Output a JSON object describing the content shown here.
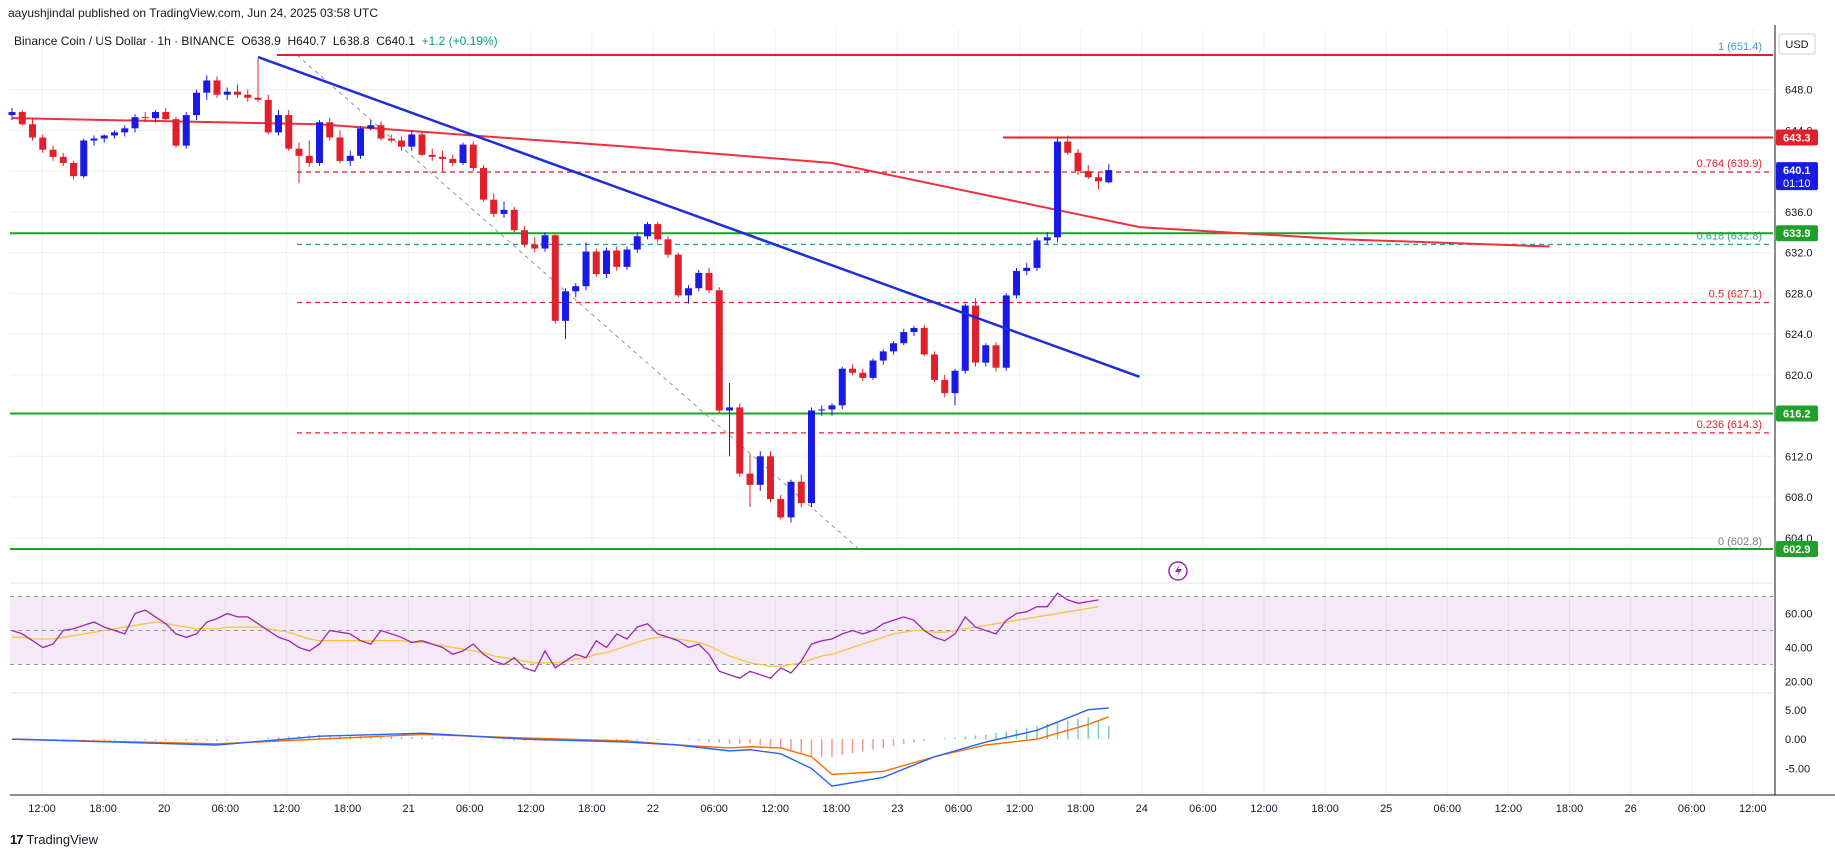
{
  "header": {
    "published": "aayushjindal published on TradingView.com, Jun 24, 2025 03:58 UTC"
  },
  "legend": {
    "symbol": "Binance Coin / US Dollar · 1h · BINANCE",
    "open": "O638.9",
    "high": "H640.7",
    "low": "L638.8",
    "close": "C640.1",
    "change": "+1.2 (+0.19%)"
  },
  "brand": {
    "name": "TradingView",
    "logo": "17"
  },
  "colors": {
    "up": "#1a1ae6",
    "down": "#e0202a",
    "ma": "#f0303c",
    "trend": "#1c2fd6",
    "support": "#1fa02a",
    "resistance": "#e0202a",
    "rsi": "#9c27b0",
    "rsi_ma": "#f5c542",
    "macd": "#2962ff",
    "signal": "#ff6d00",
    "hist": "#26a69a"
  },
  "chart_data": [
    {
      "type": "candlestick",
      "title": "Binance Coin / US Dollar · 1h · BINANCE",
      "currency": "USD",
      "ylim": [
        602,
        652
      ],
      "y_ticks": [
        "648.0",
        "644.0",
        "640.0",
        "636.0",
        "632.0",
        "628.0",
        "624.0",
        "620.0",
        "616.0",
        "612.0",
        "608.0",
        "604.0"
      ],
      "x_ticks": [
        "12:00",
        "18:00",
        "20",
        "06:00",
        "12:00",
        "18:00",
        "21",
        "06:00",
        "12:00",
        "18:00",
        "22",
        "06:00",
        "12:00",
        "18:00",
        "23",
        "06:00",
        "12:00",
        "18:00",
        "24",
        "06:00",
        "12:00",
        "18:00",
        "25",
        "06:00",
        "12:00",
        "18:00",
        "26",
        "06:00",
        "12:00"
      ],
      "candles": [
        [
          645.5,
          646.2,
          645.0,
          645.8
        ],
        [
          645.8,
          646.0,
          644.5,
          644.6
        ],
        [
          644.6,
          645.2,
          643.0,
          643.3
        ],
        [
          643.3,
          643.6,
          641.8,
          642.1
        ],
        [
          642.1,
          642.5,
          641.0,
          641.4
        ],
        [
          641.4,
          641.8,
          640.5,
          640.8
        ],
        [
          640.8,
          641.0,
          639.2,
          639.5
        ],
        [
          639.5,
          643.2,
          639.3,
          643.0
        ],
        [
          643.0,
          643.5,
          642.5,
          643.2
        ],
        [
          643.2,
          643.6,
          642.8,
          643.5
        ],
        [
          643.5,
          644.0,
          643.2,
          643.8
        ],
        [
          643.8,
          644.5,
          643.4,
          644.2
        ],
        [
          644.2,
          645.6,
          643.8,
          645.3
        ],
        [
          645.3,
          645.8,
          644.8,
          645.2
        ],
        [
          645.2,
          646.0,
          644.8,
          645.8
        ],
        [
          645.8,
          646.2,
          645.0,
          645.1
        ],
        [
          645.1,
          645.3,
          642.3,
          642.5
        ],
        [
          642.5,
          645.8,
          642.2,
          645.5
        ],
        [
          645.5,
          648.0,
          645.0,
          647.7
        ],
        [
          647.7,
          649.4,
          647.0,
          648.9
        ],
        [
          648.9,
          649.3,
          647.2,
          647.5
        ],
        [
          647.5,
          648.2,
          647.0,
          647.8
        ],
        [
          647.8,
          648.5,
          647.2,
          647.5
        ],
        [
          647.5,
          648.0,
          646.8,
          647.2
        ],
        [
          647.2,
          651.0,
          646.8,
          647.0
        ],
        [
          647.0,
          647.5,
          643.6,
          643.8
        ],
        [
          643.8,
          646.0,
          643.5,
          645.5
        ],
        [
          645.5,
          646.0,
          642.0,
          642.2
        ],
        [
          642.2,
          642.8,
          638.8,
          641.5
        ],
        [
          641.5,
          643.0,
          640.4,
          640.8
        ],
        [
          640.8,
          645.0,
          640.5,
          644.8
        ],
        [
          644.8,
          645.2,
          643.0,
          643.3
        ],
        [
          643.3,
          644.0,
          640.8,
          641.0
        ],
        [
          641.0,
          642.0,
          640.5,
          641.5
        ],
        [
          641.5,
          644.4,
          641.2,
          644.2
        ],
        [
          644.2,
          645.0,
          644.0,
          644.5
        ],
        [
          644.5,
          644.9,
          643.0,
          643.2
        ],
        [
          643.2,
          643.6,
          642.8,
          643.0
        ],
        [
          643.0,
          643.4,
          642.0,
          642.4
        ],
        [
          642.4,
          644.0,
          642.0,
          643.6
        ],
        [
          643.6,
          643.8,
          641.5,
          641.6
        ],
        [
          641.6,
          642.2,
          641.0,
          641.4
        ],
        [
          641.4,
          642.0,
          640.0,
          641.2
        ],
        [
          641.2,
          641.6,
          640.5,
          640.8
        ],
        [
          640.8,
          642.8,
          640.6,
          642.6
        ],
        [
          642.6,
          642.9,
          640.0,
          640.3
        ],
        [
          640.3,
          640.6,
          637.0,
          637.2
        ],
        [
          637.2,
          637.8,
          635.5,
          635.8
        ],
        [
          635.8,
          637.0,
          635.4,
          636.2
        ],
        [
          636.2,
          636.5,
          634.0,
          634.2
        ],
        [
          634.2,
          634.6,
          632.5,
          632.8
        ],
        [
          632.8,
          633.5,
          632.0,
          632.4
        ],
        [
          632.4,
          634.0,
          632.1,
          633.7
        ],
        [
          633.7,
          633.8,
          625.0,
          625.3
        ],
        [
          625.3,
          628.5,
          623.5,
          628.2
        ],
        [
          628.2,
          629.0,
          627.6,
          628.7
        ],
        [
          628.7,
          633.0,
          628.3,
          632.1
        ],
        [
          632.1,
          632.4,
          629.6,
          629.9
        ],
        [
          629.9,
          632.5,
          629.5,
          632.2
        ],
        [
          632.2,
          632.6,
          630.2,
          630.6
        ],
        [
          630.6,
          632.6,
          630.3,
          632.3
        ],
        [
          632.3,
          634.0,
          632.0,
          633.6
        ],
        [
          633.6,
          635.0,
          633.3,
          634.8
        ],
        [
          634.8,
          635.0,
          633.0,
          633.3
        ],
        [
          633.3,
          633.6,
          631.5,
          631.8
        ],
        [
          631.8,
          632.0,
          627.6,
          627.8
        ],
        [
          627.8,
          628.8,
          627.0,
          628.5
        ],
        [
          628.5,
          630.3,
          628.2,
          630.0
        ],
        [
          630.0,
          630.5,
          628.0,
          628.3
        ],
        [
          628.3,
          628.6,
          616.2,
          616.5
        ],
        [
          616.5,
          619.2,
          612.0,
          616.8
        ],
        [
          616.8,
          617.2,
          610.0,
          610.3
        ],
        [
          610.3,
          612.2,
          607.0,
          609.2
        ],
        [
          609.2,
          612.5,
          608.6,
          612.0
        ],
        [
          612.0,
          612.5,
          607.5,
          607.8
        ],
        [
          607.8,
          608.2,
          605.8,
          606.0
        ],
        [
          606.0,
          609.7,
          605.5,
          609.5
        ],
        [
          609.5,
          610.2,
          607.0,
          607.4
        ],
        [
          607.4,
          616.8,
          607.0,
          616.5
        ],
        [
          616.5,
          617.0,
          616.0,
          616.6
        ],
        [
          616.6,
          617.2,
          616.0,
          617.0
        ],
        [
          617.0,
          620.8,
          616.6,
          620.6
        ],
        [
          620.6,
          621.0,
          620.0,
          620.2
        ],
        [
          620.2,
          620.6,
          619.4,
          619.7
        ],
        [
          619.7,
          621.6,
          619.5,
          621.4
        ],
        [
          621.4,
          622.5,
          621.0,
          622.3
        ],
        [
          622.3,
          623.3,
          622.0,
          623.1
        ],
        [
          623.1,
          624.5,
          622.9,
          624.2
        ],
        [
          624.2,
          624.8,
          623.8,
          624.6
        ],
        [
          624.6,
          624.9,
          621.8,
          622.0
        ],
        [
          622.0,
          622.3,
          619.3,
          619.5
        ],
        [
          619.5,
          620.0,
          617.8,
          618.2
        ],
        [
          618.2,
          620.6,
          617.0,
          620.4
        ],
        [
          620.4,
          627.0,
          620.1,
          626.8
        ],
        [
          626.8,
          627.5,
          620.8,
          621.2
        ],
        [
          621.2,
          623.1,
          620.8,
          622.9
        ],
        [
          622.9,
          623.2,
          620.3,
          620.7
        ],
        [
          620.7,
          628.0,
          620.4,
          627.8
        ],
        [
          627.8,
          630.5,
          627.5,
          630.2
        ],
        [
          630.2,
          631.0,
          629.8,
          630.5
        ],
        [
          630.5,
          633.5,
          630.2,
          633.2
        ],
        [
          633.2,
          634.0,
          632.8,
          633.5
        ],
        [
          633.5,
          643.2,
          633.0,
          642.9
        ],
        [
          642.9,
          643.5,
          641.6,
          641.8
        ],
        [
          641.8,
          642.2,
          639.6,
          640.0
        ],
        [
          640.0,
          640.6,
          639.2,
          639.4
        ],
        [
          639.4,
          639.9,
          638.2,
          639.0
        ],
        [
          638.9,
          640.7,
          638.8,
          640.1
        ]
      ],
      "ema": [
        [
          0,
          645.2
        ],
        [
          30,
          644.6
        ],
        [
          60,
          642.4
        ],
        [
          80,
          640.8
        ],
        [
          110,
          634.5
        ],
        [
          130,
          633.3
        ],
        [
          150,
          632.6
        ]
      ],
      "hlines": [
        {
          "price": 651.4,
          "color": "resistance",
          "style": "solid",
          "from": "left"
        },
        {
          "price": 643.3,
          "color": "resistance",
          "style": "solid",
          "from": "fib"
        },
        {
          "price": 633.9,
          "color": "support",
          "style": "solid",
          "from": "left"
        },
        {
          "price": 616.2,
          "color": "support",
          "style": "solid",
          "from": "left"
        },
        {
          "price": 602.9,
          "color": "support",
          "style": "solid",
          "from": "left"
        }
      ],
      "fib_levels": [
        {
          "label": "1 (651.4)",
          "price": 651.4,
          "color": "#3d9bd6"
        },
        {
          "label": "0.764 (639.9)",
          "price": 639.9,
          "color": "#e0202a"
        },
        {
          "label": "0.618 (632.8)",
          "price": 632.8,
          "color": "#26a69a"
        },
        {
          "label": "0.5 (627.1)",
          "price": 627.1,
          "color": "#e0202a"
        },
        {
          "label": "0.236 (614.3)",
          "price": 614.3,
          "color": "#e0202a"
        },
        {
          "label": "0 (602.8)",
          "price": 602.8,
          "color": "#787b86"
        }
      ],
      "trendline": [
        [
          24,
          651.2
        ],
        [
          110,
          619.8
        ]
      ],
      "price_tags": [
        {
          "text": "643.3",
          "price": 643.3,
          "color": "#e0202a"
        },
        {
          "text": "640.1",
          "sub": "01:10",
          "price": 640.1,
          "color": "#1a1ae6"
        },
        {
          "text": "633.9",
          "price": 633.9,
          "color": "#1fa02a"
        },
        {
          "text": "616.2",
          "price": 616.2,
          "color": "#1fa02a"
        },
        {
          "text": "602.9",
          "price": 602.9,
          "color": "#1fa02a"
        }
      ]
    },
    {
      "type": "line",
      "name": "RSI",
      "ylim": [
        15,
        75
      ],
      "y_ticks": [
        "60.00",
        "40.00",
        "20.00"
      ],
      "band": [
        30,
        70
      ],
      "rsi": [
        50,
        48,
        44,
        40,
        42,
        50,
        51,
        53,
        55,
        52,
        50,
        48,
        60,
        62,
        58,
        54,
        48,
        46,
        48,
        55,
        57,
        60,
        58,
        58,
        54,
        50,
        46,
        44,
        40,
        38,
        42,
        50,
        49,
        48,
        44,
        42,
        50,
        48,
        46,
        43,
        44,
        42,
        40,
        36,
        38,
        42,
        36,
        32,
        30,
        34,
        28,
        26,
        38,
        28,
        32,
        36,
        34,
        44,
        40,
        48,
        45,
        52,
        54,
        48,
        46,
        44,
        40,
        42,
        36,
        26,
        24,
        22,
        26,
        24,
        22,
        28,
        25,
        32,
        42,
        44,
        45,
        48,
        50,
        48,
        50,
        54,
        56,
        58,
        56,
        50,
        46,
        44,
        48,
        58,
        52,
        50,
        48,
        56,
        60,
        61,
        64,
        64,
        72,
        68,
        66,
        67,
        68
      ],
      "rsi_ma": [
        46,
        46,
        45,
        45,
        45,
        46,
        47,
        48,
        49,
        50,
        51,
        52,
        53,
        54,
        55,
        54,
        53,
        52,
        51,
        51,
        51,
        52,
        52,
        52,
        52,
        51,
        50,
        49,
        47,
        45,
        44,
        44,
        44,
        44,
        44,
        44,
        44,
        44,
        44,
        43,
        43,
        42,
        41,
        40,
        39,
        38,
        37,
        35,
        34,
        33,
        32,
        31,
        31,
        31,
        32,
        33,
        34,
        36,
        37,
        39,
        41,
        43,
        45,
        46,
        46,
        45,
        44,
        43,
        41,
        38,
        35,
        33,
        31,
        30,
        29,
        29,
        30,
        31,
        33,
        35,
        36,
        38,
        40,
        42,
        44,
        46,
        48,
        49,
        50,
        50,
        49,
        49,
        50,
        51,
        52,
        53,
        54,
        55,
        56,
        57,
        58,
        59,
        60,
        61,
        62,
        63,
        64
      ]
    },
    {
      "type": "line",
      "name": "MACD",
      "ylim": [
        -9,
        7
      ],
      "y_ticks": [
        "5.00",
        "0.00",
        "-5.00"
      ],
      "macd_x": [
        0,
        20,
        30,
        40,
        50,
        60,
        65,
        70,
        72,
        75,
        78,
        80,
        85,
        90,
        95,
        100,
        105,
        107
      ],
      "macd": [
        0,
        -1,
        0.5,
        1,
        0,
        -0.5,
        -1,
        -2,
        -1.8,
        -2.5,
        -5,
        -8,
        -6.5,
        -3,
        -0.5,
        1.5,
        5,
        5.3
      ],
      "signal": [
        0,
        -0.8,
        0,
        0.8,
        0.2,
        -0.3,
        -1,
        -1.5,
        -1.3,
        -1.5,
        -3,
        -6,
        -5.5,
        -3,
        -1,
        0,
        2.5,
        3.8
      ]
    }
  ]
}
